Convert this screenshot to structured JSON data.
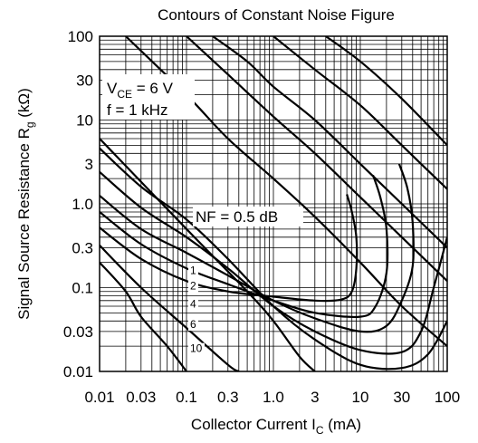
{
  "chart_data": {
    "type": "line",
    "title": "Contours of Constant Noise Figure",
    "xlabel": {
      "main": "Collector Current  I",
      "sub": "C",
      "unit": "  (mA)"
    },
    "ylabel": {
      "main": "Signal Source Resistance  R",
      "sub": "g",
      "unit": "  (kΩ)"
    },
    "x_scale": "log",
    "y_scale": "log",
    "xlim": [
      0.01,
      100
    ],
    "ylim": [
      0.01,
      100
    ],
    "grid": true,
    "x_ticks": [
      {
        "value": 0.01,
        "label": "0.01"
      },
      {
        "value": 0.03,
        "label": "0.03"
      },
      {
        "value": 0.1,
        "label": "0.1"
      },
      {
        "value": 0.3,
        "label": "0.3"
      },
      {
        "value": 1,
        "label": "1.0"
      },
      {
        "value": 3,
        "label": "3"
      },
      {
        "value": 10,
        "label": "10"
      },
      {
        "value": 30,
        "label": "30"
      },
      {
        "value": 100,
        "label": "100"
      }
    ],
    "y_ticks": [
      {
        "value": 0.01,
        "label": "0.01"
      },
      {
        "value": 0.03,
        "label": "0.03"
      },
      {
        "value": 0.1,
        "label": "0.1"
      },
      {
        "value": 0.3,
        "label": "0.3"
      },
      {
        "value": 1,
        "label": "1.0"
      },
      {
        "value": 3,
        "label": "3"
      },
      {
        "value": 10,
        "label": "10"
      },
      {
        "value": 30,
        "label": "30"
      },
      {
        "value": 100,
        "label": "100"
      }
    ],
    "conditions": {
      "vce": {
        "main": "V",
        "sub": "CE",
        "rest": " = 6 V"
      },
      "freq": "f = 1 kHz"
    },
    "curve_header": "NF = 0.5 dB",
    "series": [
      {
        "label": "",
        "points": [
          [
            0.01,
            0.52
          ],
          [
            0.03,
            0.22
          ],
          [
            0.1,
            0.12
          ],
          [
            0.3,
            0.09
          ],
          [
            1,
            0.078
          ],
          [
            3,
            0.07
          ],
          [
            6,
            0.072
          ],
          [
            8,
            0.09
          ],
          [
            9,
            0.17
          ],
          [
            9,
            0.4
          ],
          [
            8,
            0.8
          ],
          [
            7,
            1.3
          ]
        ]
      },
      {
        "label": "1",
        "points": [
          [
            0.01,
            0.8
          ],
          [
            0.03,
            0.33
          ],
          [
            0.1,
            0.17
          ],
          [
            0.3,
            0.11
          ],
          [
            1,
            0.07
          ],
          [
            3,
            0.05
          ],
          [
            10,
            0.045
          ],
          [
            15,
            0.06
          ],
          [
            20,
            0.15
          ],
          [
            20,
            0.5
          ],
          [
            17,
            1.2
          ],
          [
            14,
            2.2
          ]
        ]
      },
      {
        "label": "2",
        "points": [
          [
            0.01,
            1.25
          ],
          [
            0.03,
            0.5
          ],
          [
            0.1,
            0.26
          ],
          [
            0.3,
            0.14
          ],
          [
            1,
            0.07
          ],
          [
            3,
            0.043
          ],
          [
            10,
            0.03
          ],
          [
            20,
            0.035
          ],
          [
            30,
            0.07
          ],
          [
            40,
            0.18
          ],
          [
            40,
            0.6
          ],
          [
            35,
            1.5
          ],
          [
            28,
            3
          ]
        ]
      },
      {
        "label": "4",
        "points": [
          [
            0.01,
            2.4
          ],
          [
            0.03,
            0.9
          ],
          [
            0.1,
            0.4
          ],
          [
            0.3,
            0.17
          ],
          [
            1,
            0.06
          ],
          [
            3,
            0.03
          ],
          [
            10,
            0.018
          ],
          [
            30,
            0.017
          ],
          [
            50,
            0.03
          ],
          [
            70,
            0.1
          ],
          [
            100,
            0.4
          ]
        ]
      },
      {
        "label": "6",
        "points": [
          [
            0.01,
            4.6
          ],
          [
            0.03,
            1.6
          ],
          [
            0.1,
            0.65
          ],
          [
            0.3,
            0.22
          ],
          [
            1,
            0.06
          ],
          [
            3,
            0.024
          ],
          [
            10,
            0.012
          ],
          [
            30,
            0.011
          ],
          [
            60,
            0.016
          ],
          [
            100,
            0.04
          ]
        ]
      },
      {
        "label": "10",
        "points": [
          [
            0.01,
            0.2
          ],
          [
            0.02,
            0.09
          ],
          [
            0.03,
            0.045
          ],
          [
            0.06,
            0.02
          ],
          [
            0.1,
            0.01
          ]
        ]
      },
      {
        "label": "",
        "points": [
          [
            0.01,
            0.32
          ],
          [
            0.03,
            0.1
          ],
          [
            0.1,
            0.033
          ],
          [
            0.3,
            0.012
          ],
          [
            0.4,
            0.01
          ]
        ]
      },
      {
        "label": "",
        "points": [
          [
            0.01,
            6
          ],
          [
            0.1,
            0.5
          ],
          [
            0.5,
            0.09
          ],
          [
            1,
            0.04
          ],
          [
            2,
            0.015
          ],
          [
            3,
            0.01
          ]
        ]
      },
      {
        "label": "",
        "points": [
          [
            0.02,
            100
          ],
          [
            0.1,
            20
          ],
          [
            0.3,
            6
          ],
          [
            1,
            2
          ],
          [
            3,
            0.7
          ],
          [
            10,
            0.2
          ],
          [
            30,
            0.06
          ],
          [
            100,
            0.02
          ]
        ]
      },
      {
        "label": "",
        "points": [
          [
            0.1,
            100
          ],
          [
            0.3,
            35
          ],
          [
            1,
            11
          ],
          [
            3,
            4
          ],
          [
            10,
            1.2
          ],
          [
            30,
            0.4
          ],
          [
            100,
            0.12
          ]
        ]
      },
      {
        "label": "",
        "points": [
          [
            0.2,
            100
          ],
          [
            0.5,
            50
          ],
          [
            1,
            25
          ],
          [
            3,
            10
          ],
          [
            10,
            3
          ],
          [
            30,
            1
          ],
          [
            100,
            0.3
          ]
        ]
      },
      {
        "label": "",
        "points": [
          [
            1,
            100
          ],
          [
            3,
            40
          ],
          [
            10,
            15
          ],
          [
            30,
            5
          ],
          [
            100,
            1.5
          ]
        ]
      },
      {
        "label": "",
        "points": [
          [
            4,
            100
          ],
          [
            10,
            50
          ],
          [
            30,
            18
          ],
          [
            100,
            5
          ]
        ]
      }
    ]
  }
}
